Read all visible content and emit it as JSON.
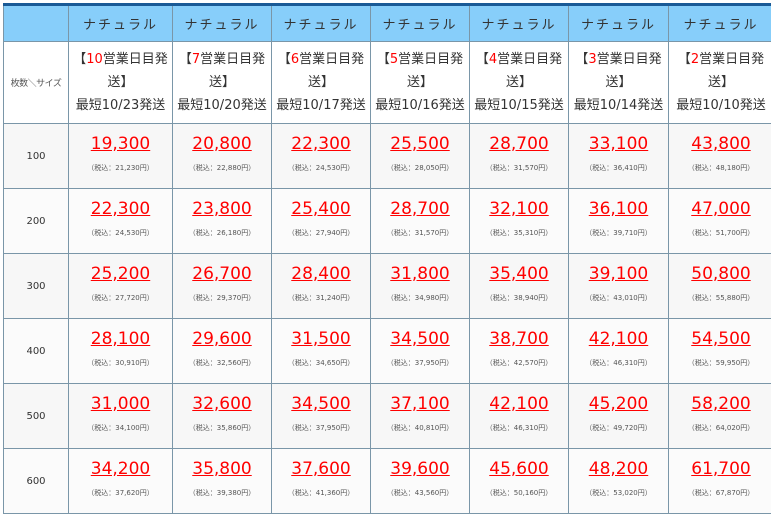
{
  "corner_label": "枚数＼サイズ",
  "columns": [
    {
      "name": "ナチュラル",
      "days": "10",
      "ship_date": "最短10/23発送"
    },
    {
      "name": "ナチュラル",
      "days": "7",
      "ship_date": "最短10/20発送"
    },
    {
      "name": "ナチュラル",
      "days": "6",
      "ship_date": "最短10/17発送"
    },
    {
      "name": "ナチュラル",
      "days": "5",
      "ship_date": "最短10/16発送"
    },
    {
      "name": "ナチュラル",
      "days": "4",
      "ship_date": "最短10/15発送"
    },
    {
      "name": "ナチュラル",
      "days": "3",
      "ship_date": "最短10/14発送"
    },
    {
      "name": "ナチュラル",
      "days": "2",
      "ship_date": "最短10/10発送"
    }
  ],
  "ship_prefix": "【",
  "ship_suffix": "営業日目発送】",
  "rows": [
    {
      "qty": "100",
      "prices": [
        "19,300",
        "20,800",
        "22,300",
        "25,500",
        "28,700",
        "33,100",
        "43,800"
      ],
      "tax": [
        "（税込：21,230円）",
        "（税込：22,880円）",
        "（税込：24,530円）",
        "（税込：28,050円）",
        "（税込：31,570円）",
        "（税込：36,410円）",
        "（税込：48,180円）"
      ]
    },
    {
      "qty": "200",
      "prices": [
        "22,300",
        "23,800",
        "25,400",
        "28,700",
        "32,100",
        "36,100",
        "47,000"
      ],
      "tax": [
        "（税込：24,530円）",
        "（税込：26,180円）",
        "（税込：27,940円）",
        "（税込：31,570円）",
        "（税込：35,310円）",
        "（税込：39,710円）",
        "（税込：51,700円）"
      ]
    },
    {
      "qty": "300",
      "prices": [
        "25,200",
        "26,700",
        "28,400",
        "31,800",
        "35,400",
        "39,100",
        "50,800"
      ],
      "tax": [
        "（税込：27,720円）",
        "（税込：29,370円）",
        "（税込：31,240円）",
        "（税込：34,980円）",
        "（税込：38,940円）",
        "（税込：43,010円）",
        "（税込：55,880円）"
      ]
    },
    {
      "qty": "400",
      "prices": [
        "28,100",
        "29,600",
        "31,500",
        "34,500",
        "38,700",
        "42,100",
        "54,500"
      ],
      "tax": [
        "（税込：30,910円）",
        "（税込：32,560円）",
        "（税込：34,650円）",
        "（税込：37,950円）",
        "（税込：42,570円）",
        "（税込：46,310円）",
        "（税込：59,950円）"
      ]
    },
    {
      "qty": "500",
      "prices": [
        "31,000",
        "32,600",
        "34,500",
        "37,100",
        "42,100",
        "45,200",
        "58,200"
      ],
      "tax": [
        "（税込：34,100円）",
        "（税込：35,860円）",
        "（税込：37,950円）",
        "（税込：40,810円）",
        "（税込：46,310円）",
        "（税込：49,720円）",
        "（税込：64,020円）"
      ]
    },
    {
      "qty": "600",
      "prices": [
        "34,200",
        "35,800",
        "37,600",
        "39,600",
        "45,600",
        "48,200",
        "61,700"
      ],
      "tax": [
        "（税込：37,620円）",
        "（税込：39,380円）",
        "（税込：41,360円）",
        "（税込：43,560円）",
        "（税込：50,160円）",
        "（税込：53,020円）",
        "（税込：67,870円）"
      ]
    }
  ]
}
